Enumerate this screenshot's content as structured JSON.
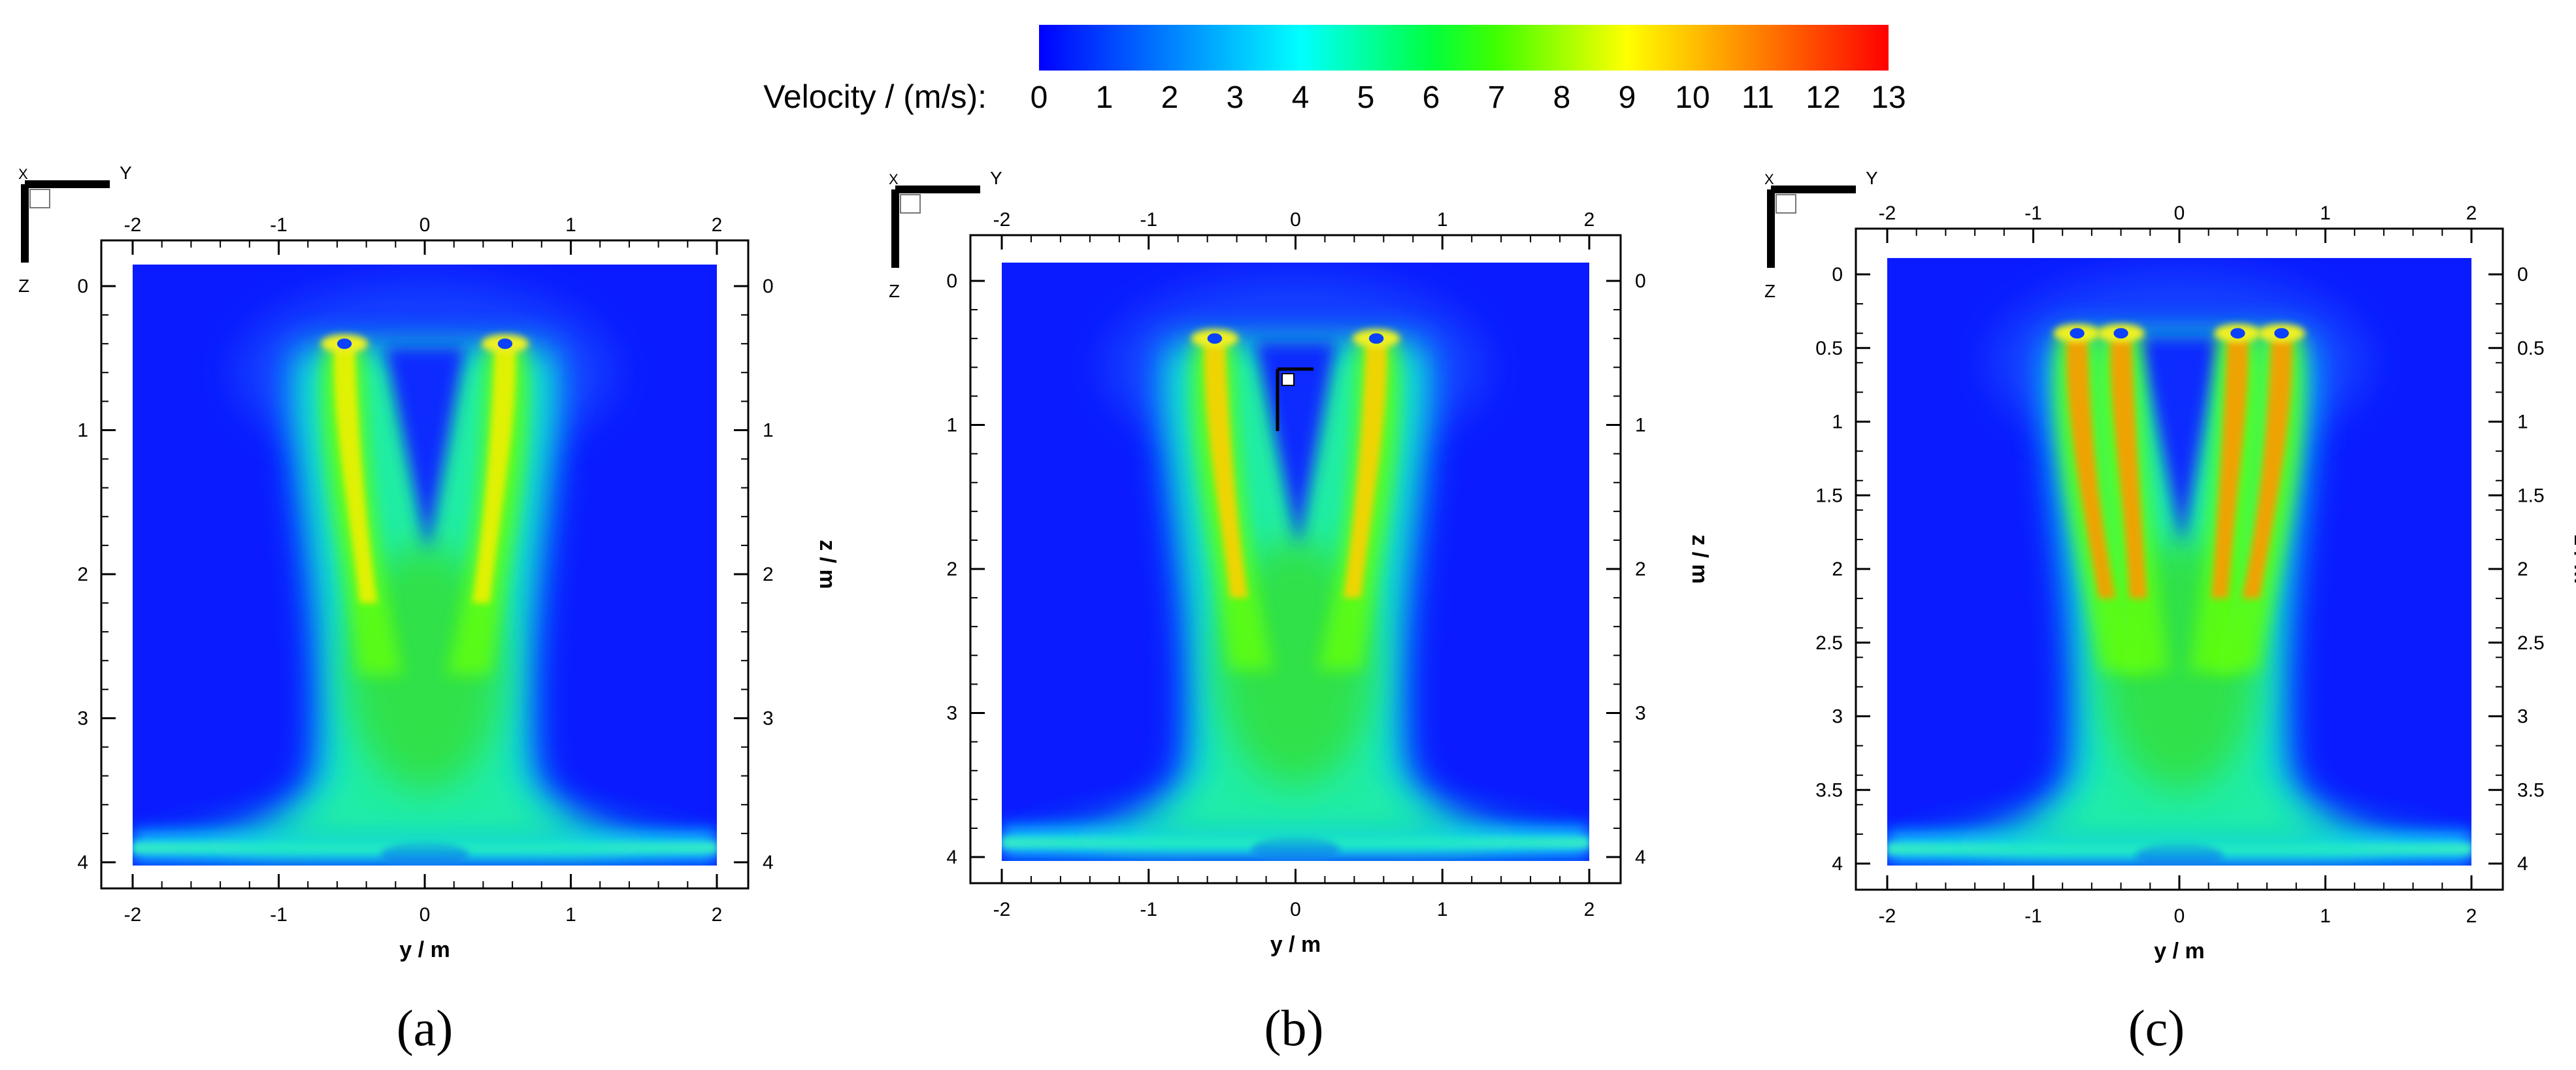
{
  "colorbar": {
    "label": "Velocity / (m/s):",
    "ticks": [
      "0",
      "1",
      "2",
      "3",
      "4",
      "5",
      "6",
      "7",
      "8",
      "9",
      "10",
      "11",
      "12",
      "13"
    ],
    "range": [
      0,
      13
    ],
    "colors": [
      "#0000ff",
      "#0040ff",
      "#0080ff",
      "#00c0ff",
      "#00ffff",
      "#00ffa0",
      "#00ff40",
      "#40ff00",
      "#a0ff00",
      "#ffff00",
      "#ffc000",
      "#ff8000",
      "#ff4000",
      "#ff0000"
    ]
  },
  "chart_data": [
    {
      "type": "heatmap",
      "panel": "(a)",
      "xlabel": "y / m",
      "ylabel": "z / m",
      "xlim": [
        -2,
        2
      ],
      "ylim": [
        0,
        4
      ],
      "xticks": [
        "-2",
        "-1",
        "0",
        "1",
        "2"
      ],
      "yticks": [
        "0",
        "1",
        "2",
        "3",
        "4"
      ],
      "axis_triad": {
        "h": "Y",
        "v": "Z"
      },
      "jets": [
        {
          "y": -0.55,
          "z": 0.4
        },
        {
          "y": 0.55,
          "z": 0.4
        }
      ],
      "peak_velocity": 10
    },
    {
      "type": "heatmap",
      "panel": "(b)",
      "xlabel": "y / m",
      "ylabel": "z / m",
      "xlim": [
        -2,
        2
      ],
      "ylim": [
        0,
        4
      ],
      "xticks": [
        "-2",
        "-1",
        "0",
        "1",
        "2"
      ],
      "yticks": [
        "0",
        "1",
        "2",
        "3",
        "4"
      ],
      "axis_triad": {
        "h": "Y",
        "v": "Z"
      },
      "jets": [
        {
          "y": -0.55,
          "z": 0.4
        },
        {
          "y": 0.55,
          "z": 0.4
        }
      ],
      "peak_velocity": 10.5
    },
    {
      "type": "heatmap",
      "panel": "(c)",
      "xlabel": "y / m",
      "ylabel": "z / m",
      "xlim": [
        -2,
        2
      ],
      "ylim": [
        0,
        4
      ],
      "xticks": [
        "-2",
        "-1",
        "0",
        "1",
        "2"
      ],
      "yticks": [
        "0",
        "0.5",
        "1",
        "1.5",
        "2",
        "2.5",
        "3",
        "3.5",
        "4"
      ],
      "axis_triad": {
        "h": "Y",
        "v": "Z"
      },
      "jets": [
        {
          "y": -0.7,
          "z": 0.4
        },
        {
          "y": -0.4,
          "z": 0.4
        },
        {
          "y": 0.4,
          "z": 0.4
        },
        {
          "y": 0.7,
          "z": 0.4
        }
      ],
      "peak_velocity": 12
    }
  ]
}
